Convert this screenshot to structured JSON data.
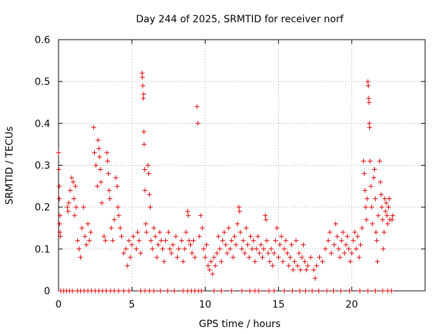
{
  "chart_data": {
    "type": "scatter",
    "title": "Day 244 of 2025, SRMTID for receiver norf",
    "xlabel": "GPS time / hours",
    "ylabel": "SRMTID / TECUs",
    "xlim": [
      0,
      25
    ],
    "ylim": [
      0,
      0.6
    ],
    "x_ticks": [
      0,
      5,
      10,
      15,
      20
    ],
    "x_tick_labels": [
      "0",
      "5",
      "10",
      "15",
      "20"
    ],
    "y_ticks": [
      0,
      0.1,
      0.2,
      0.3,
      0.4,
      0.5,
      0.6
    ],
    "y_tick_labels": [
      "0",
      "0.1",
      "0.2",
      "0.3",
      "0.4",
      "0.5",
      "0.6"
    ],
    "grid": true,
    "marker": "plus",
    "color": "#e00000",
    "series": [
      {
        "name": "SRMTID",
        "points": [
          [
            0.0,
            0.33
          ],
          [
            0.02,
            0.29
          ],
          [
            0.05,
            0.25
          ],
          [
            0.05,
            0.22
          ],
          [
            0.07,
            0.16
          ],
          [
            0.1,
            0.14
          ],
          [
            0.12,
            0.13
          ],
          [
            0.1,
            0.18
          ],
          [
            0.6,
            0.2
          ],
          [
            0.65,
            0.19
          ],
          [
            0.7,
            0.21
          ],
          [
            0.8,
            0.24
          ],
          [
            0.9,
            0.27
          ],
          [
            1.0,
            0.26
          ],
          [
            1.05,
            0.22
          ],
          [
            1.1,
            0.18
          ],
          [
            1.15,
            0.25
          ],
          [
            1.2,
            0.2
          ],
          [
            1.3,
            0.12
          ],
          [
            1.4,
            0.1
          ],
          [
            1.5,
            0.08
          ],
          [
            1.6,
            0.15
          ],
          [
            1.7,
            0.2
          ],
          [
            1.8,
            0.13
          ],
          [
            1.9,
            0.11
          ],
          [
            2.0,
            0.16
          ],
          [
            2.1,
            0.12
          ],
          [
            2.2,
            0.14
          ],
          [
            2.4,
            0.39
          ],
          [
            2.45,
            0.33
          ],
          [
            2.55,
            0.3
          ],
          [
            2.65,
            0.25
          ],
          [
            2.7,
            0.36
          ],
          [
            2.75,
            0.34
          ],
          [
            2.8,
            0.32
          ],
          [
            2.85,
            0.29
          ],
          [
            2.9,
            0.26
          ],
          [
            2.95,
            0.21
          ],
          [
            3.1,
            0.13
          ],
          [
            3.2,
            0.12
          ],
          [
            3.3,
            0.33
          ],
          [
            3.35,
            0.31
          ],
          [
            3.4,
            0.28
          ],
          [
            3.45,
            0.24
          ],
          [
            3.5,
            0.22
          ],
          [
            3.6,
            0.15
          ],
          [
            3.7,
            0.12
          ],
          [
            3.8,
            0.17
          ],
          [
            3.9,
            0.27
          ],
          [
            4.0,
            0.25
          ],
          [
            4.05,
            0.2
          ],
          [
            4.1,
            0.18
          ],
          [
            4.2,
            0.15
          ],
          [
            4.3,
            0.13
          ],
          [
            4.45,
            0.09
          ],
          [
            4.6,
            0.1
          ],
          [
            4.7,
            0.06
          ],
          [
            4.8,
            0.12
          ],
          [
            4.9,
            0.08
          ],
          [
            5.0,
            0.11
          ],
          [
            5.1,
            0.13
          ],
          [
            5.3,
            0.1
          ],
          [
            5.4,
            0.14
          ],
          [
            5.5,
            0.12
          ],
          [
            5.6,
            0.09
          ],
          [
            5.7,
            0.52
          ],
          [
            5.72,
            0.51
          ],
          [
            5.75,
            0.49
          ],
          [
            5.78,
            0.46
          ],
          [
            5.8,
            0.47
          ],
          [
            5.82,
            0.38
          ],
          [
            5.84,
            0.35
          ],
          [
            5.88,
            0.29
          ],
          [
            5.9,
            0.24
          ],
          [
            5.95,
            0.16
          ],
          [
            6.0,
            0.14
          ],
          [
            6.1,
            0.3
          ],
          [
            6.15,
            0.28
          ],
          [
            6.2,
            0.23
          ],
          [
            6.25,
            0.2
          ],
          [
            6.3,
            0.12
          ],
          [
            6.4,
            0.1
          ],
          [
            6.5,
            0.15
          ],
          [
            6.6,
            0.13
          ],
          [
            6.7,
            0.08
          ],
          [
            6.8,
            0.11
          ],
          [
            6.9,
            0.14
          ],
          [
            7.0,
            0.12
          ],
          [
            7.1,
            0.1
          ],
          [
            7.2,
            0.07
          ],
          [
            7.3,
            0.12
          ],
          [
            7.5,
            0.14
          ],
          [
            7.6,
            0.1
          ],
          [
            7.7,
            0.09
          ],
          [
            7.8,
            0.11
          ],
          [
            8.0,
            0.13
          ],
          [
            8.1,
            0.08
          ],
          [
            8.2,
            0.1
          ],
          [
            8.4,
            0.12
          ],
          [
            8.5,
            0.07
          ],
          [
            8.6,
            0.1
          ],
          [
            8.7,
            0.14
          ],
          [
            8.8,
            0.19
          ],
          [
            8.85,
            0.18
          ],
          [
            8.9,
            0.12
          ],
          [
            9.0,
            0.11
          ],
          [
            9.1,
            0.09
          ],
          [
            9.2,
            0.12
          ],
          [
            9.3,
            0.08
          ],
          [
            9.45,
            0.44
          ],
          [
            9.5,
            0.4
          ],
          [
            9.6,
            0.13
          ],
          [
            9.7,
            0.18
          ],
          [
            9.8,
            0.15
          ],
          [
            9.9,
            0.1
          ],
          [
            10.0,
            0.08
          ],
          [
            10.1,
            0.11
          ],
          [
            10.2,
            0.06
          ],
          [
            10.3,
            0.05
          ],
          [
            10.4,
            0.07
          ],
          [
            10.5,
            0.04
          ],
          [
            10.6,
            0.08
          ],
          [
            10.7,
            0.06
          ],
          [
            10.8,
            0.09
          ],
          [
            10.9,
            0.13
          ],
          [
            11.0,
            0.1
          ],
          [
            11.1,
            0.07
          ],
          [
            11.2,
            0.12
          ],
          [
            11.3,
            0.14
          ],
          [
            11.4,
            0.11
          ],
          [
            11.5,
            0.09
          ],
          [
            11.6,
            0.15
          ],
          [
            11.7,
            0.1
          ],
          [
            11.8,
            0.12
          ],
          [
            11.9,
            0.08
          ],
          [
            12.0,
            0.13
          ],
          [
            12.1,
            0.11
          ],
          [
            12.2,
            0.16
          ],
          [
            12.3,
            0.2
          ],
          [
            12.35,
            0.19
          ],
          [
            12.4,
            0.14
          ],
          [
            12.5,
            0.1
          ],
          [
            12.6,
            0.12
          ],
          [
            12.7,
            0.09
          ],
          [
            12.8,
            0.15
          ],
          [
            12.9,
            0.11
          ],
          [
            13.0,
            0.08
          ],
          [
            13.1,
            0.13
          ],
          [
            13.2,
            0.1
          ],
          [
            13.3,
            0.12
          ],
          [
            13.4,
            0.07
          ],
          [
            13.5,
            0.1
          ],
          [
            13.6,
            0.13
          ],
          [
            13.7,
            0.09
          ],
          [
            13.8,
            0.11
          ],
          [
            13.9,
            0.08
          ],
          [
            14.0,
            0.1
          ],
          [
            14.1,
            0.18
          ],
          [
            14.15,
            0.17
          ],
          [
            14.2,
            0.12
          ],
          [
            14.3,
            0.09
          ],
          [
            14.4,
            0.07
          ],
          [
            14.5,
            0.1
          ],
          [
            14.6,
            0.06
          ],
          [
            14.7,
            0.09
          ],
          [
            14.8,
            0.12
          ],
          [
            14.9,
            0.15
          ],
          [
            15.0,
            0.08
          ],
          [
            15.1,
            0.11
          ],
          [
            15.2,
            0.13
          ],
          [
            15.3,
            0.07
          ],
          [
            15.4,
            0.1
          ],
          [
            15.5,
            0.12
          ],
          [
            15.6,
            0.09
          ],
          [
            15.7,
            0.06
          ],
          [
            15.8,
            0.08
          ],
          [
            15.9,
            0.11
          ],
          [
            16.0,
            0.05
          ],
          [
            16.1,
            0.07
          ],
          [
            16.2,
            0.12
          ],
          [
            16.3,
            0.06
          ],
          [
            16.4,
            0.09
          ],
          [
            16.5,
            0.05
          ],
          [
            16.6,
            0.08
          ],
          [
            16.7,
            0.11
          ],
          [
            16.8,
            0.07
          ],
          [
            16.9,
            0.05
          ],
          [
            17.0,
            0.06
          ],
          [
            17.2,
            0.08
          ],
          [
            17.4,
            0.05
          ],
          [
            17.5,
            0.03
          ],
          [
            17.6,
            0.06
          ],
          [
            17.8,
            0.08
          ],
          [
            18.0,
            0.07
          ],
          [
            18.2,
            0.1
          ],
          [
            18.4,
            0.12
          ],
          [
            18.5,
            0.14
          ],
          [
            18.6,
            0.09
          ],
          [
            18.8,
            0.11
          ],
          [
            18.9,
            0.16
          ],
          [
            19.0,
            0.13
          ],
          [
            19.1,
            0.1
          ],
          [
            19.2,
            0.08
          ],
          [
            19.3,
            0.12
          ],
          [
            19.4,
            0.14
          ],
          [
            19.5,
            0.09
          ],
          [
            19.6,
            0.11
          ],
          [
            19.7,
            0.13
          ],
          [
            19.8,
            0.1
          ],
          [
            19.9,
            0.07
          ],
          [
            20.0,
            0.09
          ],
          [
            20.1,
            0.12
          ],
          [
            20.2,
            0.14
          ],
          [
            20.3,
            0.1
          ],
          [
            20.4,
            0.13
          ],
          [
            20.5,
            0.08
          ],
          [
            20.6,
            0.11
          ],
          [
            20.7,
            0.15
          ],
          [
            20.8,
            0.31
          ],
          [
            20.85,
            0.28
          ],
          [
            20.9,
            0.24
          ],
          [
            20.95,
            0.2
          ],
          [
            21.0,
            0.17
          ],
          [
            21.05,
            0.22
          ],
          [
            21.1,
            0.5
          ],
          [
            21.12,
            0.49
          ],
          [
            21.15,
            0.46
          ],
          [
            21.18,
            0.45
          ],
          [
            21.2,
            0.4
          ],
          [
            21.22,
            0.39
          ],
          [
            21.25,
            0.31
          ],
          [
            21.3,
            0.25
          ],
          [
            21.35,
            0.2
          ],
          [
            21.4,
            0.16
          ],
          [
            21.5,
            0.27
          ],
          [
            21.55,
            0.29
          ],
          [
            21.6,
            0.22
          ],
          [
            21.65,
            0.14
          ],
          [
            21.7,
            0.12
          ],
          [
            21.75,
            0.07
          ],
          [
            21.8,
            0.18
          ],
          [
            21.9,
            0.31
          ],
          [
            21.95,
            0.26
          ],
          [
            22.0,
            0.23
          ],
          [
            22.05,
            0.2
          ],
          [
            22.1,
            0.17
          ],
          [
            22.15,
            0.1
          ],
          [
            22.2,
            0.14
          ],
          [
            22.25,
            0.22
          ],
          [
            22.3,
            0.19
          ],
          [
            22.35,
            0.21
          ],
          [
            22.4,
            0.18
          ],
          [
            22.45,
            0.16
          ],
          [
            22.5,
            0.2
          ],
          [
            22.55,
            0.22
          ],
          [
            22.6,
            0.17
          ],
          [
            22.75,
            0.17
          ],
          [
            22.8,
            0.18
          ],
          [
            0.15,
            0.0
          ],
          [
            0.35,
            0.0
          ],
          [
            0.55,
            0.0
          ],
          [
            0.75,
            0.0
          ],
          [
            0.95,
            0.0
          ],
          [
            1.3,
            0.0
          ],
          [
            1.5,
            0.0
          ],
          [
            1.75,
            0.0
          ],
          [
            2.0,
            0.0
          ],
          [
            2.25,
            0.0
          ],
          [
            2.5,
            0.0
          ],
          [
            2.75,
            0.0
          ],
          [
            3.0,
            0.0
          ],
          [
            3.25,
            0.0
          ],
          [
            3.55,
            0.0
          ],
          [
            3.8,
            0.0
          ],
          [
            4.1,
            0.0
          ],
          [
            4.45,
            0.0
          ],
          [
            4.8,
            0.0
          ],
          [
            5.6,
            0.0
          ],
          [
            5.9,
            0.0
          ],
          [
            6.2,
            0.0
          ],
          [
            6.5,
            0.0
          ],
          [
            6.95,
            0.0
          ],
          [
            7.45,
            0.0
          ],
          [
            7.9,
            0.0
          ],
          [
            8.5,
            0.0
          ],
          [
            8.8,
            0.0
          ],
          [
            9.05,
            0.0
          ],
          [
            9.3,
            0.0
          ],
          [
            9.55,
            0.0
          ],
          [
            9.75,
            0.0
          ],
          [
            10.6,
            0.0
          ],
          [
            11.1,
            0.0
          ],
          [
            11.8,
            0.0
          ],
          [
            12.5,
            0.0
          ],
          [
            13.05,
            0.0
          ],
          [
            13.4,
            0.0
          ],
          [
            13.65,
            0.0
          ],
          [
            14.35,
            0.0
          ],
          [
            14.7,
            0.0
          ],
          [
            15.4,
            0.0
          ],
          [
            15.95,
            0.0
          ],
          [
            16.45,
            0.0
          ],
          [
            16.85,
            0.0
          ],
          [
            17.3,
            0.0
          ],
          [
            17.75,
            0.0
          ],
          [
            18.3,
            0.0
          ],
          [
            18.75,
            0.0
          ],
          [
            19.25,
            0.0
          ],
          [
            19.85,
            0.0
          ],
          [
            20.55,
            0.0
          ],
          [
            21.1,
            0.0
          ],
          [
            21.6,
            0.0
          ],
          [
            22.1,
            0.0
          ],
          [
            22.45,
            0.0
          ],
          [
            22.7,
            0.0
          ]
        ]
      }
    ]
  }
}
